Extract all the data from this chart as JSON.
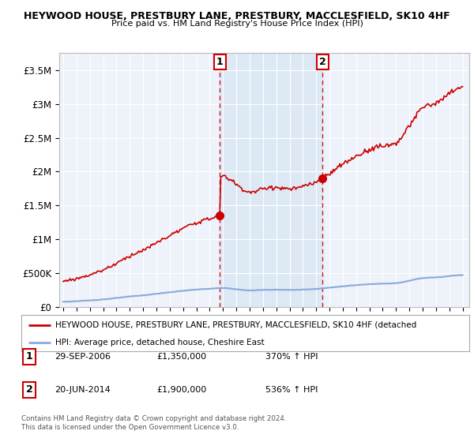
{
  "title_line1": "HEYWOOD HOUSE, PRESTBURY LANE, PRESTBURY, MACCLESFIELD, SK10 4HF",
  "title_line2": "Price paid vs. HM Land Registry's House Price Index (HPI)",
  "ylim": [
    0,
    3750000
  ],
  "yticks": [
    0,
    500000,
    1000000,
    1500000,
    2000000,
    2500000,
    3000000,
    3500000
  ],
  "ytick_labels": [
    "£0",
    "£500K",
    "£1M",
    "£1.5M",
    "£2M",
    "£2.5M",
    "£3M",
    "£3.5M"
  ],
  "xlim_start": 1994.7,
  "xlim_end": 2025.5,
  "sale1_x": 2006.75,
  "sale1_y": 1350000,
  "sale2_x": 2014.47,
  "sale2_y": 1900000,
  "legend_line1": "HEYWOOD HOUSE, PRESTBURY LANE, PRESTBURY, MACCLESFIELD, SK10 4HF (detached",
  "legend_line2": "HPI: Average price, detached house, Cheshire East",
  "footer": "Contains HM Land Registry data © Crown copyright and database right 2024.\nThis data is licensed under the Open Government Licence v3.0.",
  "price_line_color": "#cc0000",
  "hpi_line_color": "#88aadd",
  "background_color": "#ffffff",
  "plot_bg_color": "#eef2fa",
  "shade_color": "#dde8f5",
  "vline_color": "#cc0000",
  "grid_color": "#ffffff"
}
